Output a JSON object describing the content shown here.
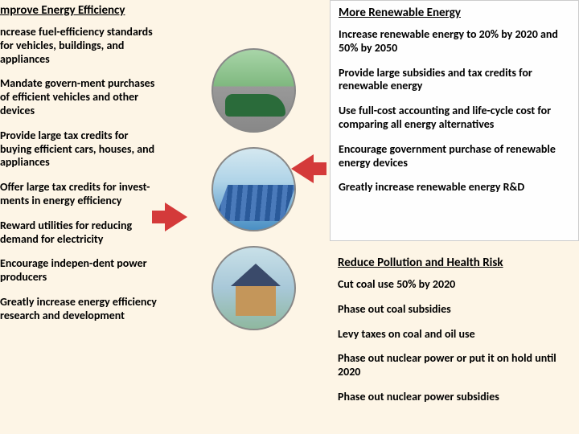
{
  "left": {
    "title": "mprove Energy Efficiency",
    "items": [
      "ncrease fuel-efficiency standards for vehicles, buildings, and appliances",
      "Mandate govern-ment purchases of efficient vehicles and other devices",
      "Provide large tax credits for buying efficient cars, houses, and appliances",
      "Offer large tax credits for invest-ments in energy efficiency",
      "Reward utilities for reducing demand for electricity",
      "Encourage indepen-dent power producers",
      "Greatly increase energy efficiency research and development"
    ]
  },
  "rightTop": {
    "title": "More Renewable Energy",
    "items": [
      "Increase renewable energy to 20% by 2020 and 50% by 2050",
      "Provide large subsidies and tax credits for renewable energy",
      "Use full-cost accounting and life-cycle cost for comparing all energy alternatives",
      "Encourage government purchase of renewable energy devices",
      "Greatly increase renewable energy R&D"
    ]
  },
  "rightBottom": {
    "title": "Reduce Pollution and Health Risk",
    "items": [
      "Cut coal use 50% by 2020",
      "Phase out coal subsidies",
      "Levy taxes on coal and oil use",
      "Phase out nuclear power or put it on hold until 2020",
      "Phase out nuclear power subsidies"
    ]
  },
  "graphics": {
    "circles": [
      "green-car",
      "solar-array",
      "solar-house"
    ],
    "arrows": [
      "arrow-right",
      "arrow-left"
    ],
    "arrow_color": "#d43a3a"
  }
}
